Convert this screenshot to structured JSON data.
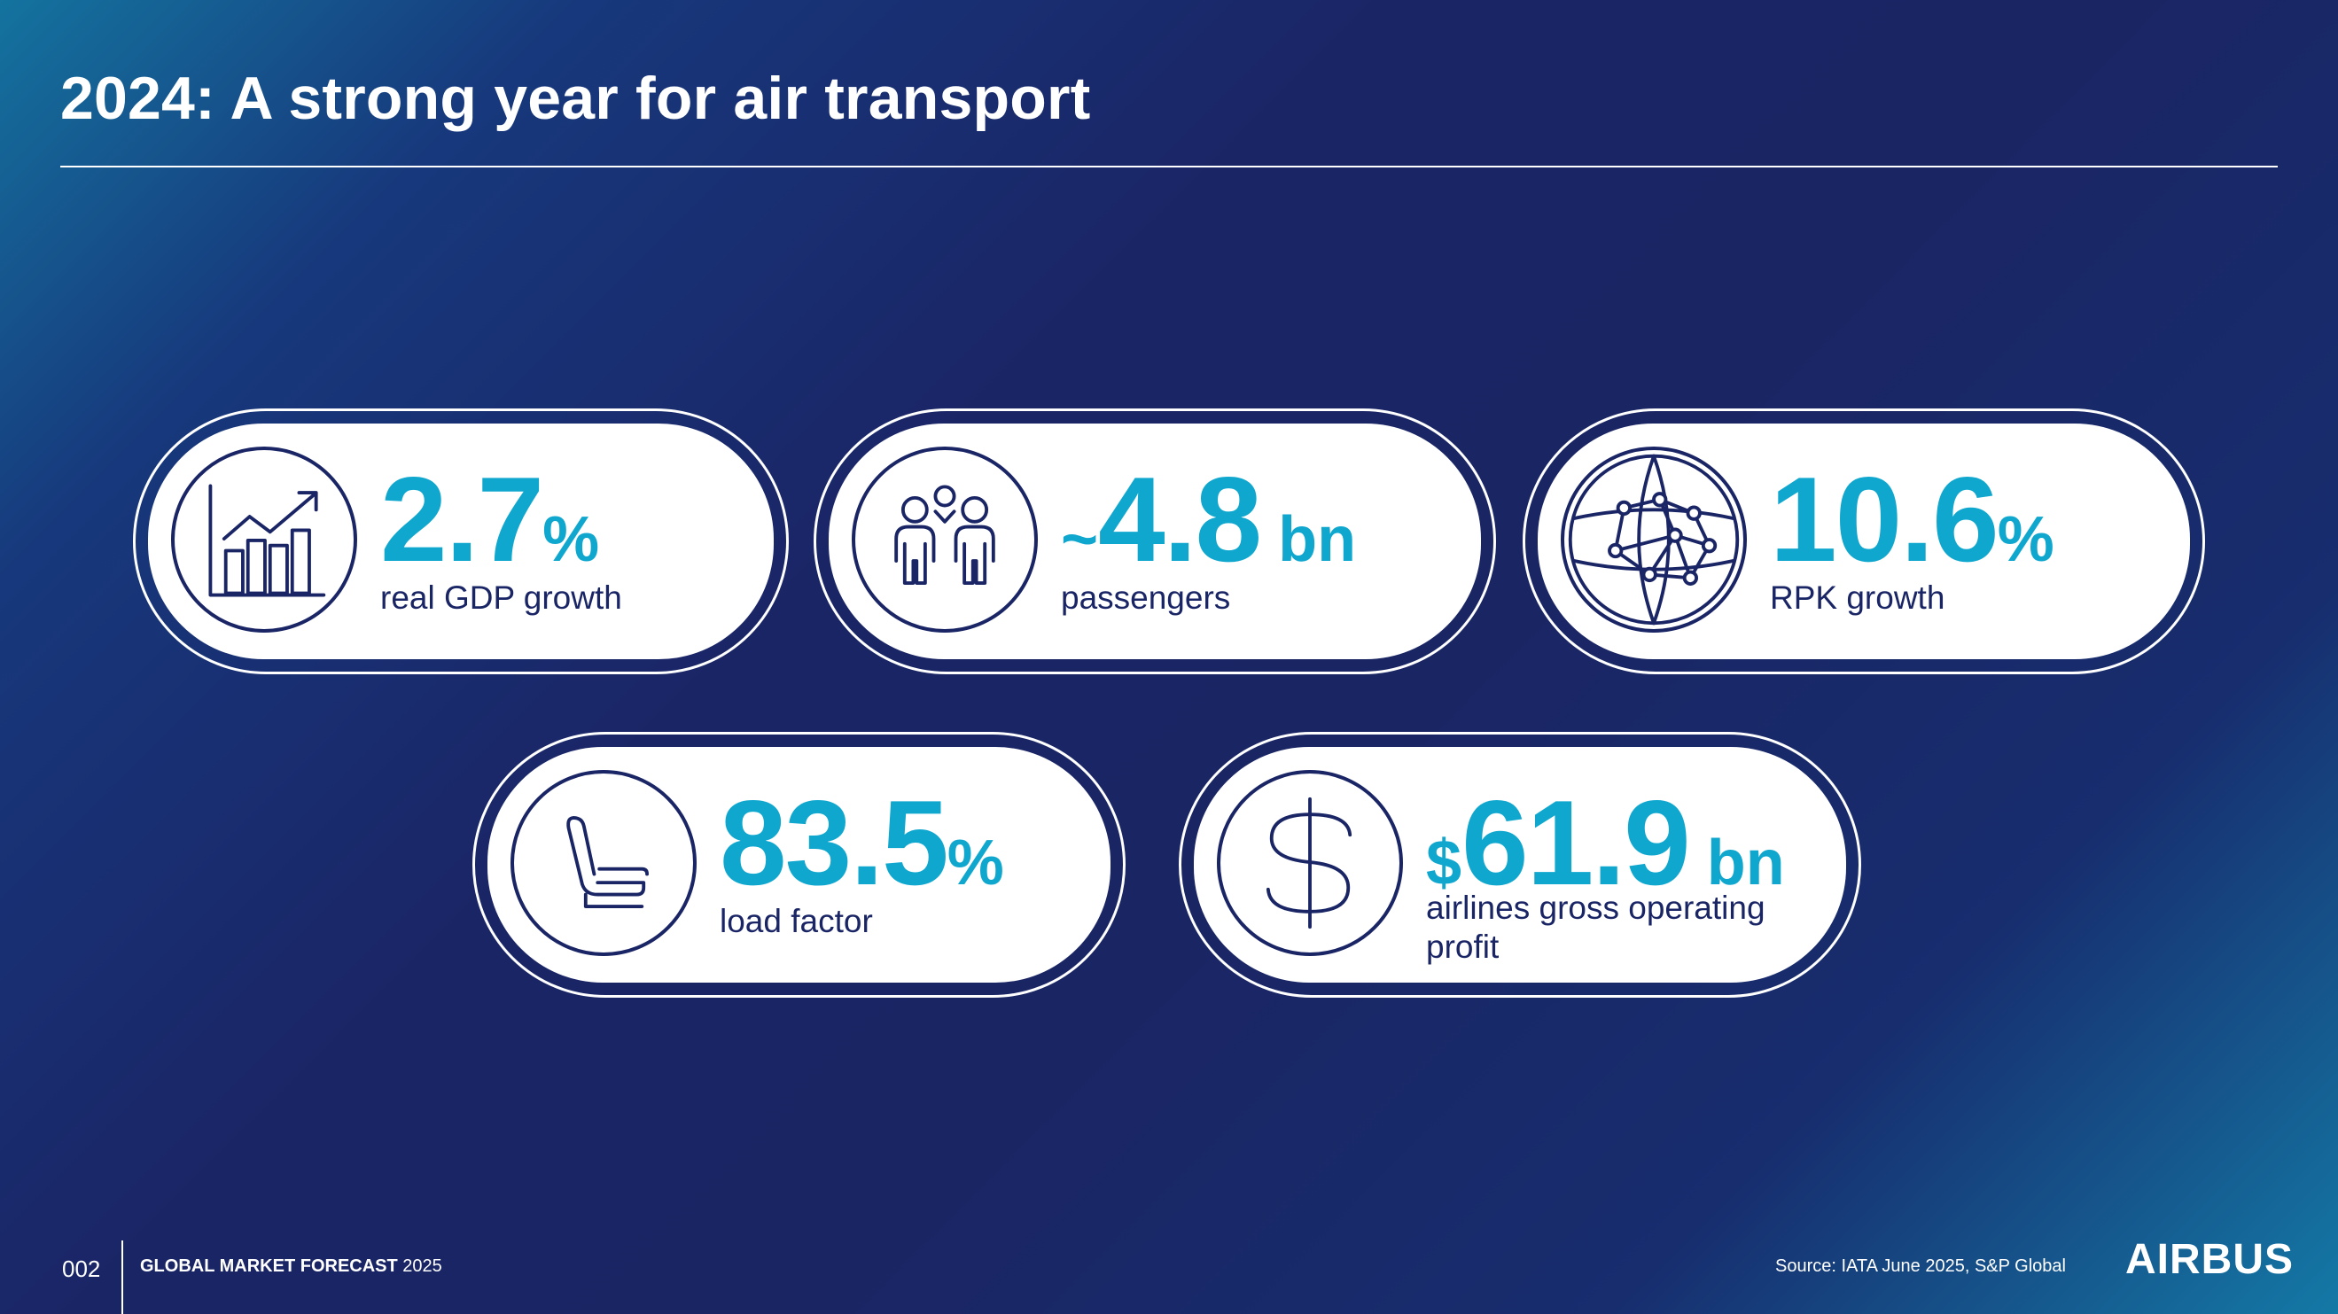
{
  "slide": {
    "title": "2024: A strong year for air transport"
  },
  "kpis": [
    {
      "icon": "growth-chart-icon",
      "prefix": "",
      "value": "2.7",
      "unit": "%",
      "label": "real GDP growth"
    },
    {
      "icon": "passengers-icon",
      "prefix": "~",
      "value": "4.8",
      "unit": " bn",
      "label": "passengers"
    },
    {
      "icon": "globe-network-icon",
      "prefix": "",
      "value": "10.6",
      "unit": "%",
      "label": "RPK growth"
    },
    {
      "icon": "seat-icon",
      "prefix": "",
      "value": "83.5",
      "unit": "%",
      "label": "load factor"
    },
    {
      "icon": "dollar-icon",
      "prefix": "$",
      "value": "61.9",
      "unit": " bn",
      "label": "airlines gross operating profit"
    }
  ],
  "footer": {
    "page_number": "002",
    "doc_bold": "GLOBAL MARKET FORECAST",
    "doc_year": "2025",
    "source": "Source: IATA June 2025, S&P Global",
    "logo": "AIRBUS"
  },
  "colors": {
    "accent": "#10a7cf",
    "navy": "#1a2566",
    "white": "#ffffff"
  }
}
